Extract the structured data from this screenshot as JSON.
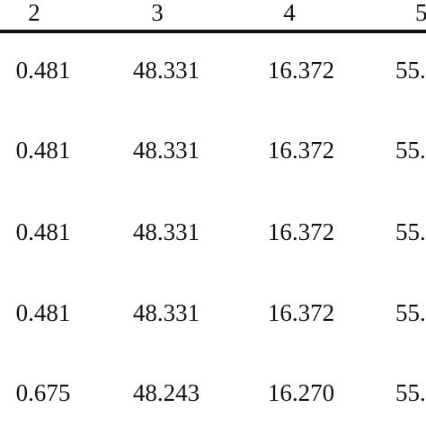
{
  "table": {
    "header": [
      "2",
      "3",
      "4",
      "5"
    ],
    "rows": [
      [
        "0.481",
        "48.331",
        "16.372",
        "55."
      ],
      [
        "0.481",
        "48.331",
        "16.372",
        "55."
      ],
      [
        "0.481",
        "48.331",
        "16.372",
        "55."
      ],
      [
        "0.481",
        "48.331",
        "16.372",
        "55."
      ],
      [
        "0.675",
        "48.243",
        "16.270",
        "55."
      ]
    ]
  }
}
